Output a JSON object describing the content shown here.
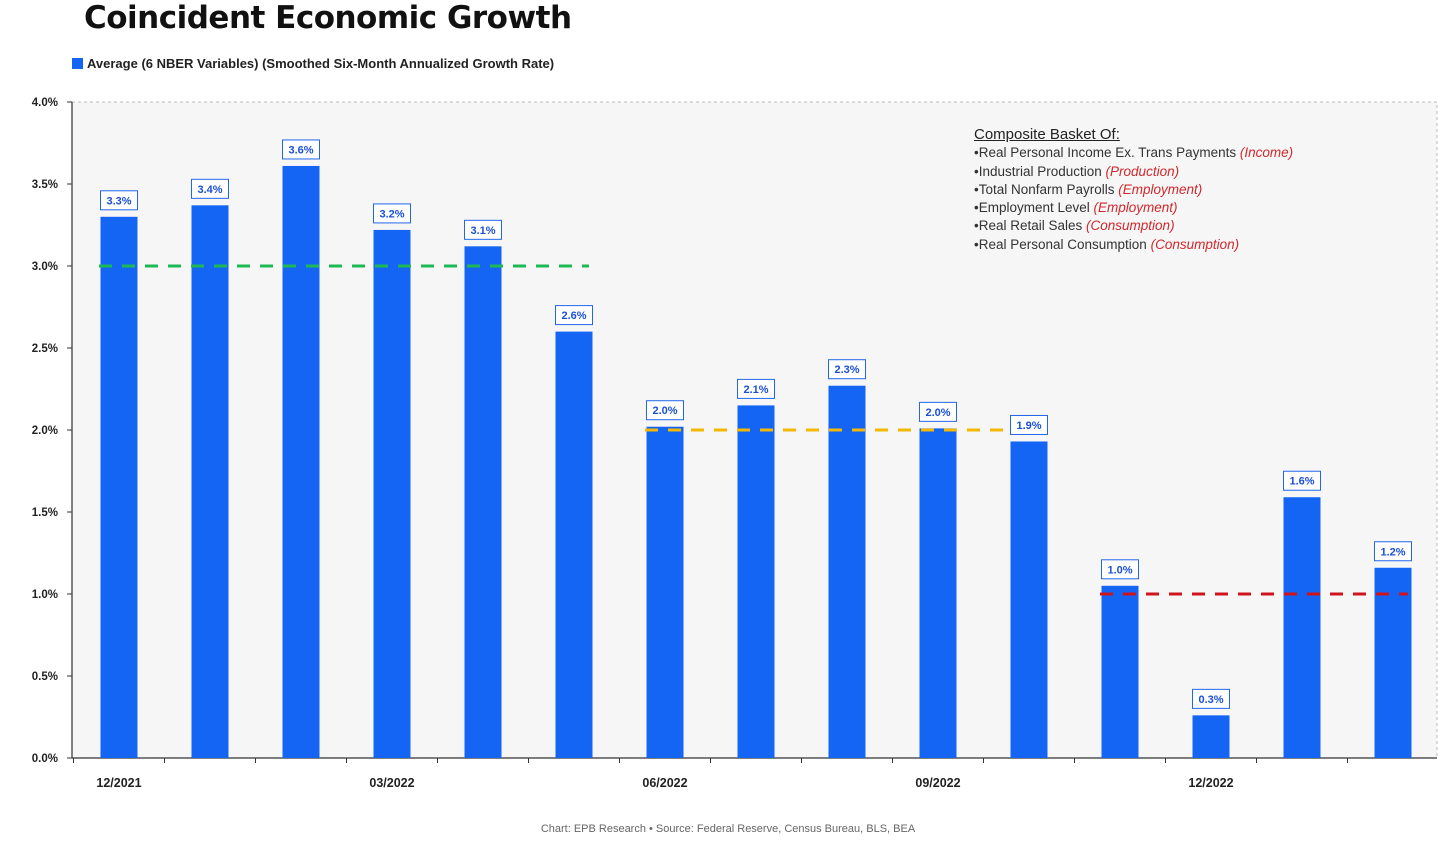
{
  "title": "Coincident Economic Growth",
  "legend": {
    "label": "Average (6 NBER Variables) (Smoothed Six-Month Annualized Growth Rate)",
    "color": "#1565F5"
  },
  "basket": {
    "heading": "Composite Basket Of:",
    "items": [
      {
        "text": "•Real Personal Income Ex. Trans Payments ",
        "category": "(Income)"
      },
      {
        "text": "•Industrial Production ",
        "category": "(Production)"
      },
      {
        "text": "•Total Nonfarm Payrolls ",
        "category": "(Employment)"
      },
      {
        "text": "•Employment Level ",
        "category": "(Employment)"
      },
      {
        "text": "•Real Retail Sales ",
        "category": "(Consumption)"
      },
      {
        "text": "•Real Personal Consumption ",
        "category": "(Consumption)"
      }
    ]
  },
  "footer": "Chart: EPB Research •  Source: Federal Reserve, Census Bureau, BLS, BEA",
  "chart_data": {
    "type": "bar",
    "title": "Coincident Economic Growth",
    "xlabel": "",
    "ylabel": "",
    "ylim": [
      0,
      4.0
    ],
    "yticks": [
      "0.0%",
      "0.5%",
      "1.0%",
      "1.5%",
      "2.0%",
      "2.5%",
      "3.0%",
      "3.5%",
      "4.0%"
    ],
    "xtick_labels": [
      {
        "label": "12/2021",
        "index": 0
      },
      {
        "label": "03/2022",
        "index": 3
      },
      {
        "label": "06/2022",
        "index": 6
      },
      {
        "label": "09/2022",
        "index": 9
      },
      {
        "label": "12/2022",
        "index": 12
      }
    ],
    "series": [
      {
        "name": "Average (6 NBER Variables) (Smoothed Six-Month Annualized Growth Rate)",
        "values": [
          3.3,
          3.37,
          3.61,
          3.22,
          3.12,
          2.6,
          2.02,
          2.15,
          2.27,
          2.01,
          1.93,
          1.05,
          0.26,
          1.59,
          1.16
        ],
        "labels": [
          "3.3%",
          "3.4%",
          "3.6%",
          "3.2%",
          "3.1%",
          "2.6%",
          "2.0%",
          "2.1%",
          "2.3%",
          "2.0%",
          "1.9%",
          "1.0%",
          "0.3%",
          "1.6%",
          "1.2%"
        ],
        "color": "#1565F5"
      }
    ],
    "reference_lines": [
      {
        "value": 3.0,
        "from_index": 0,
        "to_index": 5,
        "color": "#1db954"
      },
      {
        "value": 2.0,
        "from_index": 6,
        "to_index": 10,
        "color": "#f5b800"
      },
      {
        "value": 1.0,
        "from_index": 11,
        "to_index": 14,
        "color": "#d0141d"
      }
    ],
    "grid": false,
    "legend_position": "top-left"
  }
}
